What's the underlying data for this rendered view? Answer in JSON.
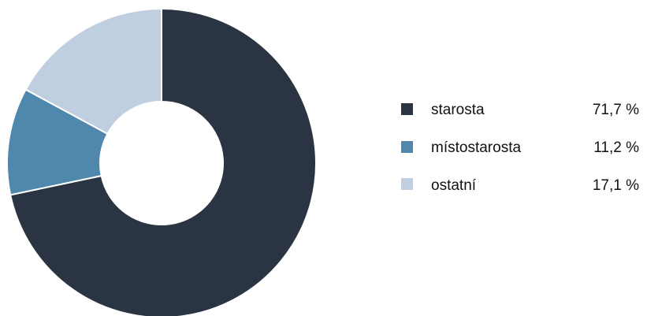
{
  "chart_data": {
    "type": "pie",
    "variant": "donut",
    "title": "",
    "legend_position": "right",
    "slices": [
      {
        "label": "starosta",
        "value": 71.7,
        "value_label": "71,7 %",
        "color": "#2b3443"
      },
      {
        "label": "místostarosta",
        "value": 11.2,
        "value_label": "11,2 %",
        "color": "#4f87ad"
      },
      {
        "label": "ostatní",
        "value": 17.1,
        "value_label": "17,1 %",
        "color": "#c0cfe0"
      }
    ]
  }
}
